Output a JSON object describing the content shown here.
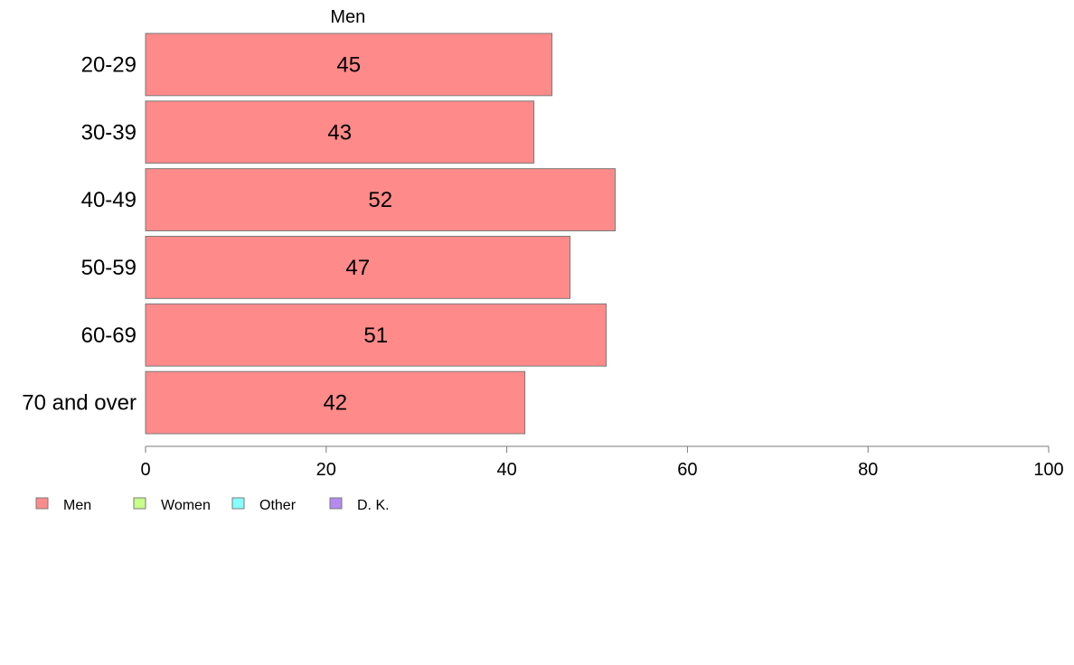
{
  "chart_data": {
    "type": "bar",
    "orientation": "horizontal",
    "title": "",
    "series_title": "Men",
    "categories": [
      "20-29",
      "30-39",
      "40-49",
      "50-59",
      "60-69",
      "70 and over"
    ],
    "series": [
      {
        "name": "Men",
        "values": [
          45,
          43,
          52,
          47,
          51,
          42
        ],
        "color": "#ff8a8a"
      }
    ],
    "data_labels": [
      "45",
      "43",
      "52",
      "47",
      "51",
      "42"
    ],
    "xlim": [
      0,
      100
    ],
    "x_ticks": [
      0,
      20,
      40,
      60,
      80,
      100
    ],
    "grid": false,
    "legend": {
      "placement": "bottom-left",
      "items": [
        {
          "label": "Men",
          "color": "#ff8a8a"
        },
        {
          "label": "Women",
          "color": "#c8ff88"
        },
        {
          "label": "Other",
          "color": "#88ffff"
        },
        {
          "label": "D. K.",
          "color": "#b48af0"
        }
      ]
    }
  }
}
